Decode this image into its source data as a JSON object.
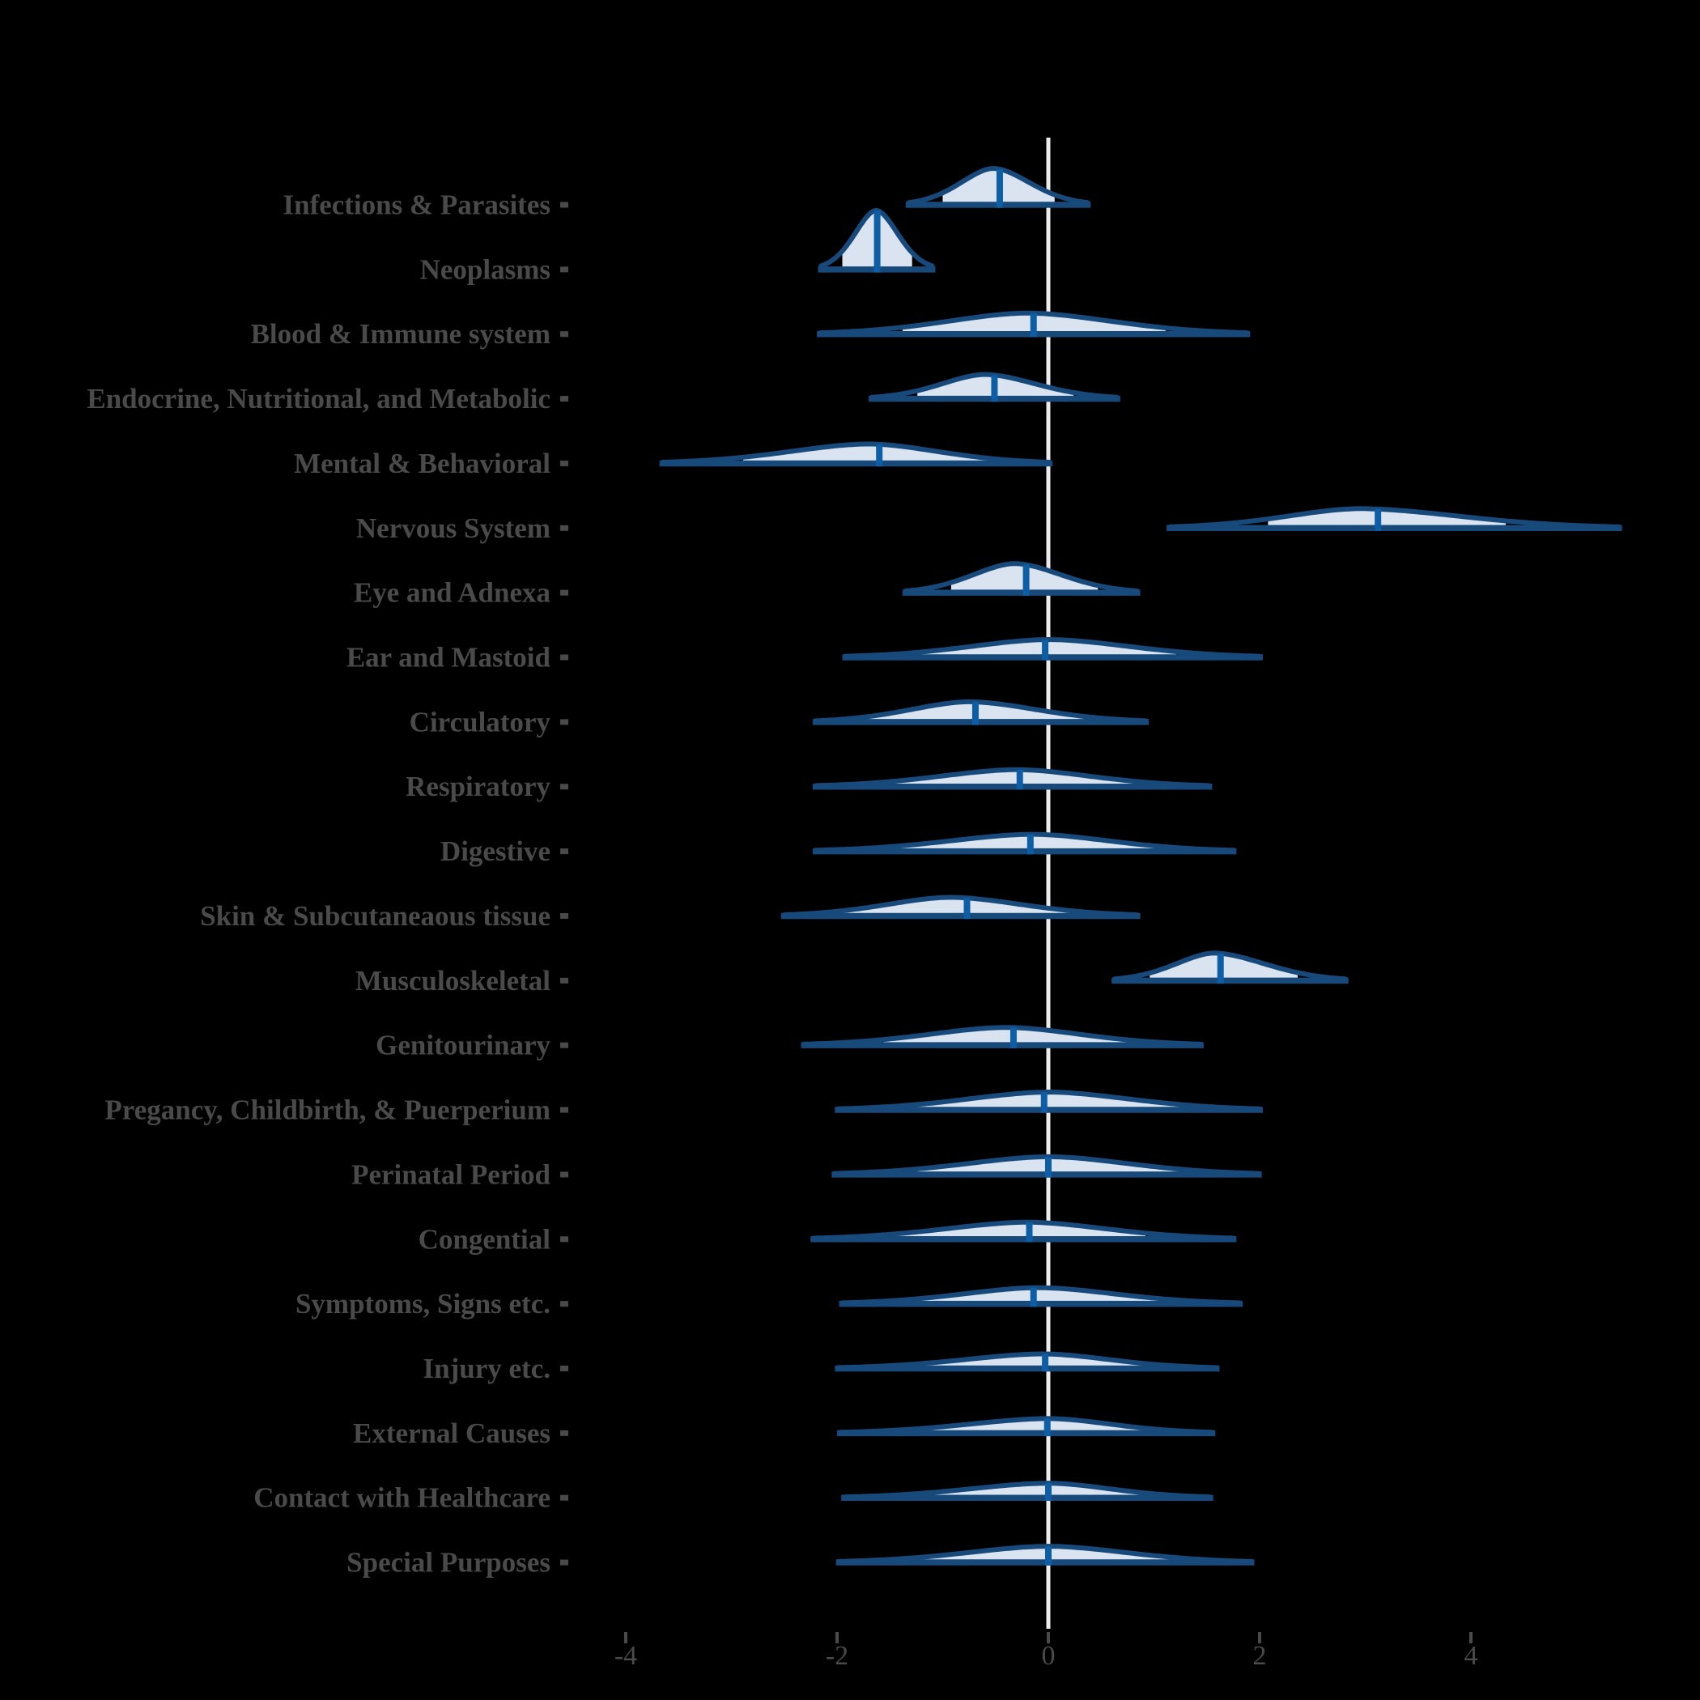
{
  "figure": {
    "title": "",
    "background": "#000000",
    "colors": {
      "outline": "#17497B",
      "fill": "#D9E4F0",
      "median": "#0E5EA6",
      "zero_line": "#EBEBEB",
      "text": "#4A4A4A"
    }
  },
  "chart_data": {
    "type": "area",
    "variant": "ridgeline-half-violin-density",
    "title": "",
    "xlabel": "",
    "ylabel": "",
    "legend": "none",
    "grid": false,
    "zero_reference_line": 0,
    "xlim": [
      -4.6,
      6.2
    ],
    "x_ticks": [
      -4,
      -2,
      0,
      2,
      4
    ],
    "x_tick_labels": [
      "-4",
      "-2",
      "0",
      "2",
      "4"
    ],
    "categories": [
      "Infections & Parasites",
      "Neoplasms",
      "Blood & Immune system",
      "Endocrine, Nutritional, and Metabolic",
      "Mental & Behavioral",
      "Nervous System",
      "Eye and Adnexa",
      "Ear and Mastoid",
      "Circulatory",
      "Respiratory",
      "Digestive",
      "Skin & Subcutaneaous tissue",
      "Musculoskeletal",
      "Genitourinary",
      "Pregancy, Childbirth, & Puerperium",
      "Perinatal Period",
      "Congential",
      "Symptoms, Signs etc.",
      "Injury etc.",
      "External Causes",
      "Contact with Healthcare",
      "Special Purposes"
    ],
    "series": [
      {
        "category": "Infections & Parasites",
        "median": -0.46,
        "mode": -0.52,
        "range": [
          -1.32,
          0.37
        ],
        "fill_span": [
          -1.0,
          0.06
        ],
        "peak": 45
      },
      {
        "category": "Neoplasms",
        "median": -1.62,
        "mode": -1.63,
        "range": [
          -2.15,
          -1.1
        ],
        "fill_span": [
          -1.95,
          -1.29
        ],
        "peak": 73
      },
      {
        "category": "Blood & Immune system",
        "median": -0.14,
        "mode": -0.2,
        "range": [
          -2.16,
          1.88
        ],
        "fill_span": [
          -1.38,
          1.11
        ],
        "peak": 26
      },
      {
        "category": "Endocrine, Nutritional, and Metabolic",
        "median": -0.51,
        "mode": -0.6,
        "range": [
          -1.67,
          0.65
        ],
        "fill_span": [
          -1.24,
          0.24
        ],
        "peak": 30
      },
      {
        "category": "Mental & Behavioral",
        "median": -1.6,
        "mode": -1.7,
        "range": [
          -3.65,
          0.01
        ],
        "fill_span": [
          -2.89,
          -0.54
        ],
        "peak": 24
      },
      {
        "category": "Nervous System",
        "median": 3.12,
        "mode": 2.95,
        "range": [
          1.15,
          5.4
        ],
        "fill_span": [
          2.08,
          4.33
        ],
        "peak": 24
      },
      {
        "category": "Eye and Adnexa",
        "median": -0.21,
        "mode": -0.32,
        "range": [
          -1.35,
          0.84
        ],
        "fill_span": [
          -0.92,
          0.47
        ],
        "peak": 36
      },
      {
        "category": "Ear and Mastoid",
        "median": -0.03,
        "mode": 0.0,
        "range": [
          -1.92,
          2.0
        ],
        "fill_span": [
          -1.28,
          1.21
        ],
        "peak": 22
      },
      {
        "category": "Circulatory",
        "median": -0.69,
        "mode": -0.75,
        "range": [
          -2.2,
          0.92
        ],
        "fill_span": [
          -1.75,
          0.34
        ],
        "peak": 25
      },
      {
        "category": "Respiratory",
        "median": -0.27,
        "mode": -0.3,
        "range": [
          -2.2,
          1.52
        ],
        "fill_span": [
          -1.47,
          0.88
        ],
        "peak": 21
      },
      {
        "category": "Digestive",
        "median": -0.17,
        "mode": -0.15,
        "range": [
          -2.2,
          1.75
        ],
        "fill_span": [
          -1.44,
          1.09
        ],
        "peak": 21
      },
      {
        "category": "Skin & Subcutaneaous tissue",
        "median": -0.77,
        "mode": -0.93,
        "range": [
          -2.5,
          0.84
        ],
        "fill_span": [
          -1.95,
          0.31
        ],
        "peak": 23
      },
      {
        "category": "Musculoskeletal",
        "median": 1.63,
        "mode": 1.57,
        "range": [
          0.63,
          2.81
        ],
        "fill_span": [
          0.96,
          2.36
        ],
        "peak": 34
      },
      {
        "category": "Genitourinary",
        "median": -0.33,
        "mode": -0.4,
        "range": [
          -2.31,
          1.44
        ],
        "fill_span": [
          -1.56,
          0.83
        ],
        "peak": 22
      },
      {
        "category": "Pregancy, Childbirth, & Puerperium",
        "median": -0.04,
        "mode": 0.0,
        "range": [
          -1.99,
          2.0
        ],
        "fill_span": [
          -1.26,
          1.26
        ],
        "peak": 22
      },
      {
        "category": "Perinatal Period",
        "median": 0.0,
        "mode": 0.0,
        "range": [
          -2.02,
          1.99
        ],
        "fill_span": [
          -1.24,
          1.24
        ],
        "peak": 22
      },
      {
        "category": "Congential",
        "median": -0.18,
        "mode": -0.2,
        "range": [
          -2.22,
          1.75
        ],
        "fill_span": [
          -1.43,
          0.92
        ],
        "peak": 21
      },
      {
        "category": "Symptoms, Signs etc.",
        "median": -0.14,
        "mode": -0.1,
        "range": [
          -1.95,
          1.81
        ],
        "fill_span": [
          -1.38,
          1.11
        ],
        "peak": 20
      },
      {
        "category": "Injury etc.",
        "median": -0.03,
        "mode": -0.05,
        "range": [
          -1.99,
          1.59
        ],
        "fill_span": [
          -1.32,
          1.26
        ],
        "peak": 18
      },
      {
        "category": "External Causes",
        "median": -0.01,
        "mode": 0.0,
        "range": [
          -1.97,
          1.55
        ],
        "fill_span": [
          -1.29,
          1.25
        ],
        "peak": 18
      },
      {
        "category": "Contact with Healthcare",
        "median": 0.0,
        "mode": 0.0,
        "range": [
          -1.93,
          1.53
        ],
        "fill_span": [
          -1.25,
          1.3
        ],
        "peak": 18
      },
      {
        "category": "Special Purposes",
        "median": 0.0,
        "mode": 0.0,
        "range": [
          -1.98,
          1.92
        ],
        "fill_span": [
          -1.24,
          1.24
        ],
        "peak": 20
      }
    ]
  }
}
